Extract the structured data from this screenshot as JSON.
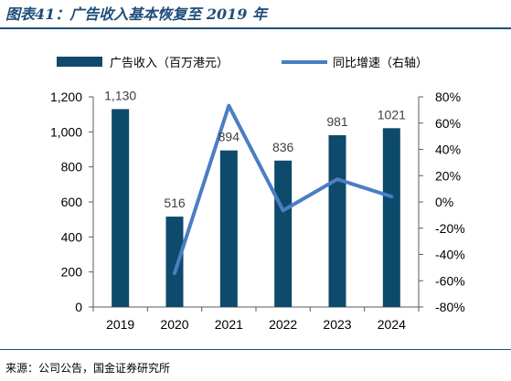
{
  "header": {
    "title": "图表41：广告收入基本恢复至 2019 年"
  },
  "footer": {
    "source": "来源：公司公告，国金证券研究所"
  },
  "colors": {
    "bar": "#0d4a6b",
    "line": "#4a7ec2",
    "title": "#1f4e79",
    "axis": "#595959"
  },
  "chart_data": {
    "type": "bar",
    "title": "图表41：广告收入基本恢复至 2019 年",
    "categories": [
      "2019",
      "2020",
      "2021",
      "2022",
      "2023",
      "2024"
    ],
    "series": [
      {
        "name": "广告收入（百万港元）",
        "type": "bar",
        "axis": "left",
        "values": [
          1130,
          516,
          894,
          836,
          981,
          1021
        ],
        "data_labels": [
          "1,130",
          "516",
          "894",
          "836",
          "981",
          "1021"
        ]
      },
      {
        "name": "同比增速（右轴）",
        "type": "line",
        "axis": "right",
        "values": [
          null,
          -54.3,
          73.3,
          -6.5,
          17.3,
          4.1
        ]
      }
    ],
    "y_left": {
      "ylim": [
        0,
        1200
      ],
      "ticks": [
        0,
        200,
        400,
        600,
        800,
        1000,
        1200
      ],
      "tick_labels": [
        "0",
        "200",
        "400",
        "600",
        "800",
        "1,000",
        "1,200"
      ]
    },
    "y_right": {
      "ylim": [
        -80,
        80
      ],
      "ticks": [
        -80,
        -60,
        -40,
        -20,
        0,
        20,
        40,
        60,
        80
      ],
      "tick_labels": [
        "-80%",
        "-60%",
        "-40%",
        "-20%",
        "0%",
        "20%",
        "40%",
        "60%",
        "80%"
      ]
    },
    "legend": "top",
    "grid": false
  }
}
